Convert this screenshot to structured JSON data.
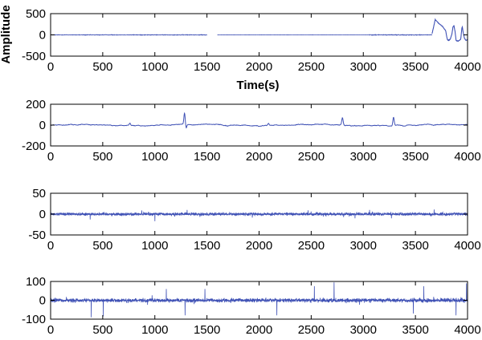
{
  "figure": {
    "background": "#ffffff",
    "axis_color": "#000000",
    "line_color": "#3f51b5"
  },
  "chart_data": [
    {
      "type": "line",
      "xlabel": "Time(s)",
      "ylabel": "Amplitude",
      "xlim": [
        0,
        4000
      ],
      "ylim": [
        -500,
        500
      ],
      "xticks": [
        0,
        500,
        1000,
        1500,
        2000,
        2500,
        3000,
        3500,
        4000
      ],
      "yticks": [
        -500,
        0,
        500
      ],
      "grid": false,
      "series": [
        {
          "style": "segmented low-noise signal with large late excursions",
          "segments": [
            {
              "x": [
                0,
                1500
              ],
              "noise_amplitude": 10
            },
            {
              "x": [
                1600,
                3050
              ],
              "noise_amplitude": 3
            },
            {
              "x": [
                3050,
                3660
              ],
              "noise_amplitude": 12
            }
          ],
          "points": [
            [
              3660,
              30
            ],
            [
              3690,
              360
            ],
            [
              3720,
              280
            ],
            [
              3760,
              200
            ],
            [
              3790,
              100
            ],
            [
              3805,
              -100
            ],
            [
              3815,
              -130
            ],
            [
              3835,
              -100
            ],
            [
              3850,
              20
            ],
            [
              3860,
              180
            ],
            [
              3870,
              220
            ],
            [
              3880,
              80
            ],
            [
              3890,
              -130
            ],
            [
              3910,
              -150
            ],
            [
              3935,
              -100
            ],
            [
              3945,
              150
            ],
            [
              3950,
              190
            ],
            [
              3958,
              60
            ],
            [
              3970,
              -80
            ],
            [
              3985,
              -130
            ],
            [
              4000,
              -110
            ]
          ]
        }
      ]
    },
    {
      "type": "line",
      "xlabel": "",
      "ylabel": "",
      "xlim": [
        0,
        4000
      ],
      "ylim": [
        -200,
        200
      ],
      "xticks": [
        0,
        500,
        1000,
        1500,
        2000,
        2500,
        3000,
        3500,
        4000
      ],
      "yticks": [
        -200,
        0,
        200
      ],
      "grid": false,
      "series": [
        {
          "style": "smooth baseline wander with spikes",
          "baseline_noise": 8,
          "peaks": [
            [
              1285,
              110
            ],
            [
              1300,
              -35
            ],
            [
              2800,
              70
            ],
            [
              3290,
              80
            ],
            [
              2090,
              20
            ],
            [
              760,
              20
            ]
          ]
        }
      ]
    },
    {
      "type": "line",
      "xlabel": "",
      "ylabel": "",
      "xlim": [
        0,
        4000
      ],
      "ylim": [
        -50,
        50
      ],
      "xticks": [
        0,
        500,
        1000,
        1500,
        2000,
        2500,
        3000,
        3500,
        4000
      ],
      "yticks": [
        -50,
        0,
        50
      ],
      "grid": false,
      "series": [
        {
          "style": "dense noise",
          "noise_amplitude": 5,
          "spikes": [
            [
              1000,
              -17
            ],
            [
              380,
              -13
            ],
            [
              1310,
              10
            ],
            [
              3060,
              10
            ],
            [
              3270,
              -10
            ],
            [
              2470,
              9
            ],
            [
              3680,
              11
            ]
          ]
        }
      ]
    },
    {
      "type": "line",
      "xlabel": "",
      "ylabel": "",
      "xlim": [
        0,
        4000
      ],
      "ylim": [
        -100,
        100
      ],
      "xticks": [
        0,
        500,
        1000,
        1500,
        2000,
        2500,
        3000,
        3500,
        4000
      ],
      "yticks": [
        -100,
        0,
        100
      ],
      "grid": false,
      "series": [
        {
          "style": "dense noise with frequent spikes",
          "noise_amplitude": 15,
          "spikes": [
            [
              2720,
              95
            ],
            [
              3990,
              90
            ],
            [
              1290,
              -80
            ],
            [
              2170,
              -80
            ],
            [
              390,
              -90
            ],
            [
              505,
              -85
            ],
            [
              2530,
              75
            ],
            [
              3480,
              -70
            ],
            [
              3890,
              -80
            ],
            [
              3580,
              75
            ],
            [
              1110,
              60
            ],
            [
              1480,
              60
            ]
          ]
        }
      ]
    }
  ]
}
